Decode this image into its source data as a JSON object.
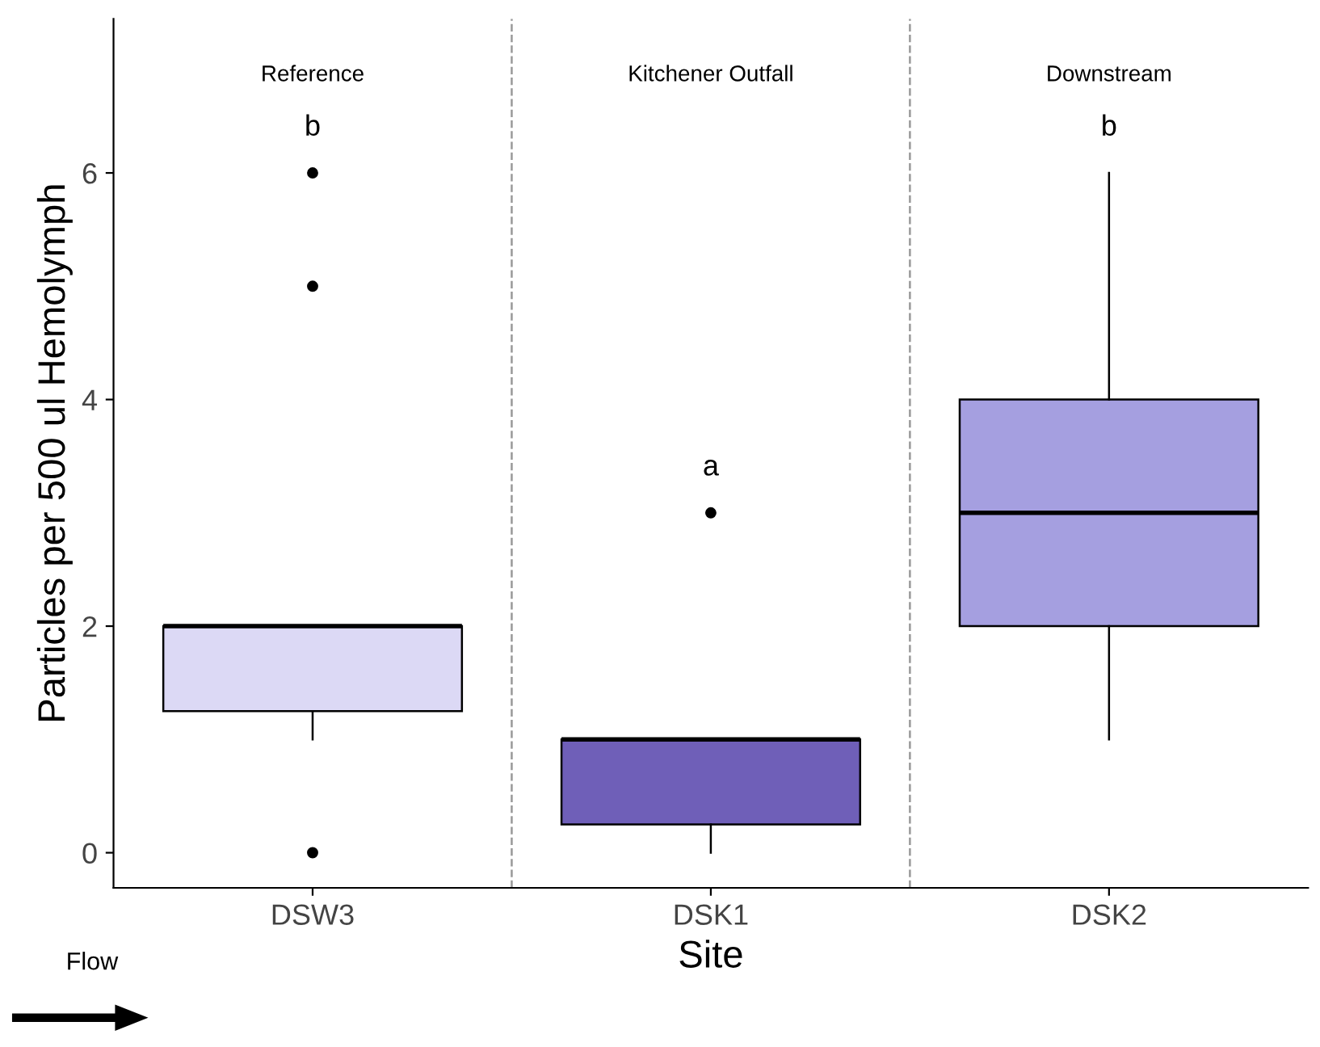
{
  "chart_data": {
    "type": "box",
    "xlabel": "Site",
    "ylabel": "Particles per 500 ul Hemolymph",
    "categories": [
      "DSW3",
      "DSK1",
      "DSK2"
    ],
    "colors": [
      "#dcd9f5",
      "#6f5fb8",
      "#a59fe0"
    ],
    "boxes": [
      {
        "low": 1,
        "q1": 1.25,
        "median": 2,
        "q3": 2,
        "high": 2,
        "outliers": [
          0,
          5,
          6
        ]
      },
      {
        "low": 0,
        "q1": 0.25,
        "median": 1,
        "q3": 1,
        "high": 1,
        "outliers": [
          3
        ]
      },
      {
        "low": 1,
        "q1": 2,
        "median": 3,
        "q3": 4,
        "high": 6
      }
    ],
    "ylim": [
      -0.31,
      7.36
    ],
    "yticks": [
      0,
      2,
      4,
      6
    ],
    "grid": false,
    "annotations": [
      "Reference",
      "Kitchener Outfall",
      "Downstream",
      "b",
      "a",
      "b",
      "Flow"
    ]
  }
}
